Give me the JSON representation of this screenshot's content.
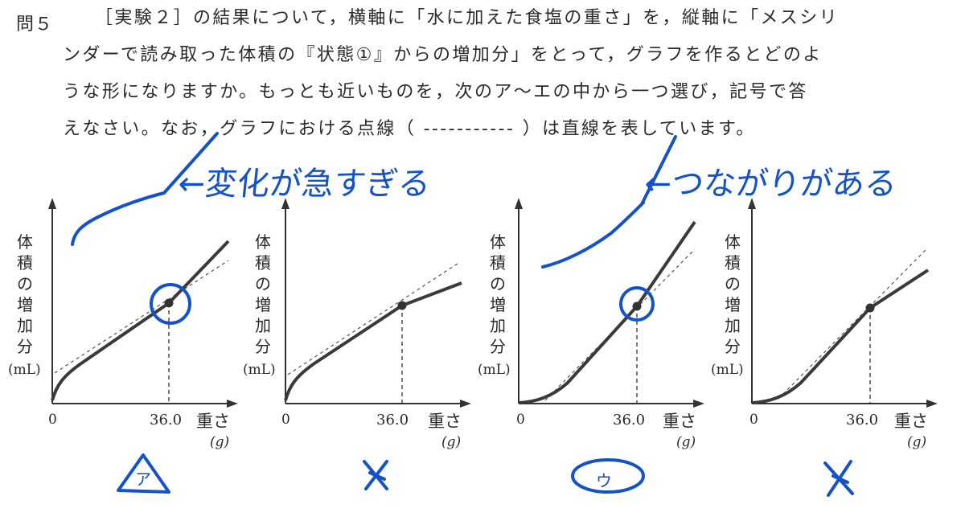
{
  "question": {
    "number": "問５",
    "lines": [
      "［実験２］の結果について，横軸に「水に加えた食塩の重さ」を，縦軸に「メスシリ",
      "ンダーで読み取った体積の『状態①』からの増加分」をとって，グラフを作るとどのよ",
      "うな形になりますか。もっとも近いものを，次のア～エの中から一つ選び，記号で答",
      "えなさい。なお，グラフにおける点線（ ----------- ）は直線を表しています。"
    ]
  },
  "graphs": [
    {
      "id": "ア",
      "ylabel_chars": [
        "体",
        "積",
        "の",
        "増",
        "加",
        "分"
      ],
      "yunit": "(mL)",
      "origin": "0",
      "tick": "36.0",
      "xlabel": "重さ",
      "xunit": "(g)",
      "shape": "concave-then-steeper"
    },
    {
      "id": "イ",
      "ylabel_chars": [
        "体",
        "積",
        "の",
        "増",
        "加",
        "分"
      ],
      "yunit": "(mL)",
      "origin": "0",
      "tick": "36.0",
      "xlabel": "重さ",
      "xunit": "(g)",
      "shape": "concave-then-flatter"
    },
    {
      "id": "ウ",
      "ylabel_chars": [
        "体",
        "積",
        "の",
        "増",
        "加",
        "分"
      ],
      "yunit": "(mL)",
      "origin": "0",
      "tick": "36.0",
      "xlabel": "重さ",
      "xunit": "(g)",
      "shape": "convex-then-steeper"
    },
    {
      "id": "エ",
      "ylabel_chars": [
        "体",
        "積",
        "の",
        "増",
        "加",
        "分"
      ],
      "yunit": "(mL)",
      "origin": "0",
      "tick": "36.0",
      "xlabel": "重さ",
      "xunit": "(g)",
      "shape": "convex-then-flatter"
    }
  ],
  "choices": [
    "ア",
    "",
    "ウ",
    ""
  ],
  "annotations": {
    "note_left": "←変化が急すぎる",
    "note_right": "←つながりがある"
  },
  "colors": {
    "ink": "#1452c8",
    "print": "#2a2a2a",
    "curve": "#3a3a3a"
  }
}
